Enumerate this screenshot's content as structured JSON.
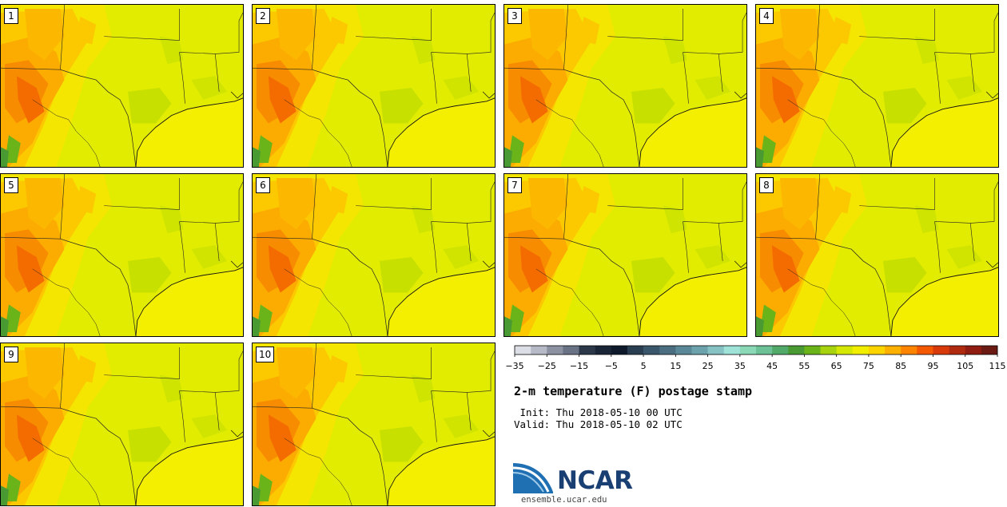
{
  "colorbar": {
    "colors": [
      "#dcdee6",
      "#b6bac6",
      "#8c92a2",
      "#6a7286",
      "#2c384a",
      "#1a2538",
      "#0e1a2c",
      "#2a3e52",
      "#3a566a",
      "#4a6e80",
      "#5a8898",
      "#6ca2ac",
      "#86c2c4",
      "#9ee2d8",
      "#8ad8b6",
      "#6cc296",
      "#52aa6a",
      "#4a9a34",
      "#6ab41a",
      "#a6d20e",
      "#d4e804",
      "#f2ee00",
      "#fcd400",
      "#fcb000",
      "#fc8400",
      "#f45800",
      "#d83a0c",
      "#b02a10",
      "#901c12",
      "#6c1a14"
    ],
    "tick_labels": [
      "−35",
      "−25",
      "−15",
      "−5",
      "5",
      "15",
      "25",
      "35",
      "45",
      "55",
      "65",
      "75",
      "85",
      "95",
      "105",
      "115"
    ]
  },
  "title": "2-m temperature (F) postage stamp",
  "init_line": " Init: Thu 2018-05-10 00 UTC",
  "valid_line": "Valid: Thu 2018-05-10 02 UTC",
  "logo": {
    "text": "NCAR",
    "url": "ensemble.ucar.edu"
  },
  "panels": [
    {
      "label": "1"
    },
    {
      "label": "2"
    },
    {
      "label": "3"
    },
    {
      "label": "4"
    },
    {
      "label": "5"
    },
    {
      "label": "6"
    },
    {
      "label": "7"
    },
    {
      "label": "8"
    },
    {
      "label": "9"
    },
    {
      "label": "10"
    }
  ]
}
